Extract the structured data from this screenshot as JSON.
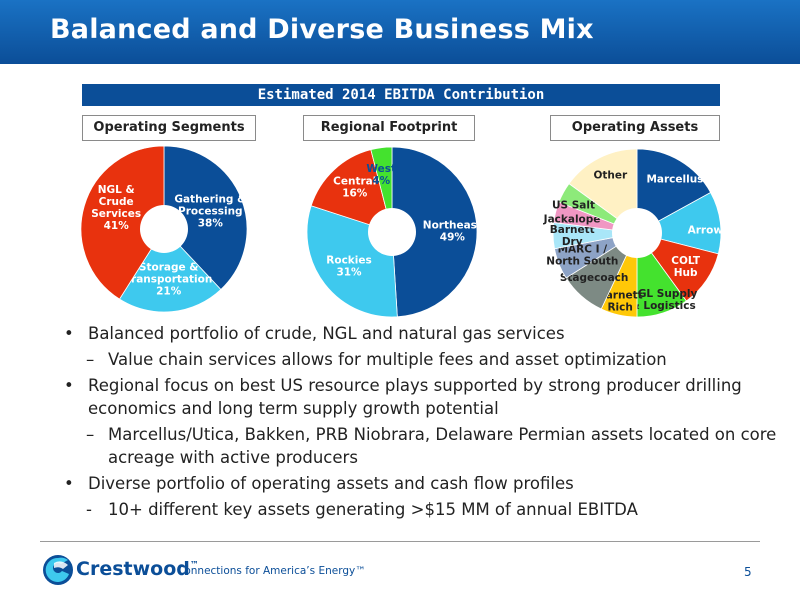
{
  "slide": {
    "title": "Balanced and Diverse Business Mix",
    "header": "Estimated 2014 EBITDA Contribution",
    "page_number": "5"
  },
  "brand": {
    "name": "Crestwood",
    "tm": "™",
    "tagline": "Connections for America’s Energy™",
    "primary_color": "#0b4e98"
  },
  "chart_data": [
    {
      "type": "pie",
      "title": "Operating Segments",
      "slices": [
        {
          "label": "Gathering &\nProcessing\n38%",
          "value": 38,
          "color": "#0b4e98",
          "text_color": "#ffffff"
        },
        {
          "label": "Storage &\nTransportation\n21%",
          "value": 21,
          "color": "#3ec9ee",
          "text_color": "#ffffff"
        },
        {
          "label": "NGL &\nCrude\nServices\n41%",
          "value": 41,
          "color": "#e8320e",
          "text_color": "#ffffff"
        }
      ]
    },
    {
      "type": "pie",
      "title": "Regional Footprint",
      "slices": [
        {
          "label": "Northeast\n49%",
          "value": 49,
          "color": "#0b4e98",
          "text_color": "#ffffff"
        },
        {
          "label": "Rockies\n31%",
          "value": 31,
          "color": "#3ec9ee",
          "text_color": "#ffffff"
        },
        {
          "label": "Central\n16%",
          "value": 16,
          "color": "#e8320e",
          "text_color": "#ffffff"
        },
        {
          "label": "West\n4%",
          "value": 4,
          "color": "#44e22e",
          "text_color": "#0b4e98"
        }
      ]
    },
    {
      "type": "pie",
      "title": "Operating Assets",
      "slices": [
        {
          "label": "Marcellus",
          "value": 17,
          "color": "#0b4e98",
          "text_color": "#ffffff"
        },
        {
          "label": "Arrow",
          "value": 12,
          "color": "#3ec9ee",
          "text_color": "#ffffff"
        },
        {
          "label": "COLT\nHub",
          "value": 11,
          "color": "#e8320e",
          "text_color": "#ffffff"
        },
        {
          "label": "NGL Supply\n& Logistics",
          "value": 10,
          "color": "#44e22e",
          "text_color": "#222222"
        },
        {
          "label": "Barnett\nRich",
          "value": 7,
          "color": "#ffc808",
          "text_color": "#222222"
        },
        {
          "label": "Stagecoach",
          "value": 9,
          "color": "#7d8a84",
          "text_color": "#222222"
        },
        {
          "label": "MARC I /\nNorth South",
          "value": 6,
          "color": "#8da3c6",
          "text_color": "#222222"
        },
        {
          "label": "Barnett\nDry",
          "value": 5,
          "color": "#a9e6f8",
          "text_color": "#222222"
        },
        {
          "label": "Jackalope",
          "value": 4,
          "color": "#f097c3",
          "text_color": "#222222"
        },
        {
          "label": "US Salt",
          "value": 4,
          "color": "#8dea7a",
          "text_color": "#222222"
        },
        {
          "label": "Other",
          "value": 15,
          "color": "#fff1c4",
          "text_color": "#222222"
        }
      ]
    }
  ],
  "bullets": [
    {
      "level": 1,
      "marker": "•",
      "text": "Balanced portfolio of crude, NGL and natural gas services"
    },
    {
      "level": 2,
      "marker": "–",
      "text": "Value chain services allows for multiple fees and asset optimization"
    },
    {
      "level": 1,
      "marker": "•",
      "text": "Regional focus on best US resource plays supported by strong producer drilling economics and long term supply growth potential"
    },
    {
      "level": 2,
      "marker": "–",
      "text": "Marcellus/Utica, Bakken, PRB Niobrara, Delaware Permian assets located on core acreage with active producers"
    },
    {
      "level": 1,
      "marker": "•",
      "text": "Diverse portfolio of operating assets and cash flow profiles"
    },
    {
      "level": 2,
      "marker": "-",
      "text": "10+ different key assets generating >$15 MM of annual EBITDA"
    }
  ]
}
